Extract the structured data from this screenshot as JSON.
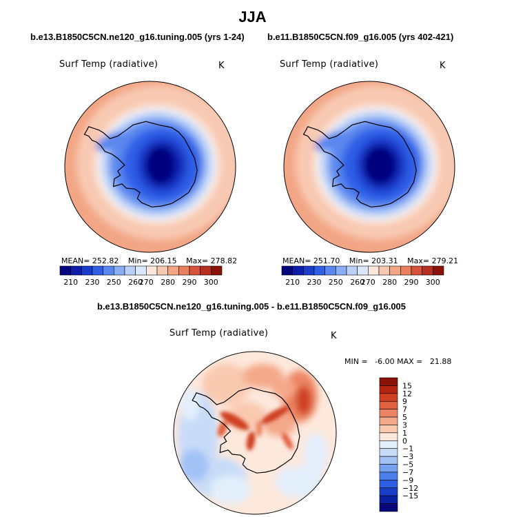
{
  "page": {
    "title": "JJA",
    "diff_title": "b.e13.B1850C5CN.ne120_g16.tuning.005 - b.e11.B1850C5CN.f09_g16.005"
  },
  "colors": {
    "abs_scale": [
      "#05057e",
      "#0e1da9",
      "#1a3ccc",
      "#2f5fe6",
      "#5a86ef",
      "#8aaef3",
      "#bad0f7",
      "#dbe7fa",
      "#fde7dc",
      "#f8c9b2",
      "#f2a686",
      "#e8805d",
      "#d6523a",
      "#b72f20",
      "#8a1208"
    ],
    "diff_scale": [
      "#07077a",
      "#0a20a0",
      "#1a3ec6",
      "#2e5fe0",
      "#4d7fea",
      "#76a0f0",
      "#a2c2f5",
      "#c8dcf8",
      "#e3eefb",
      "#fde8dc",
      "#f9c9b0",
      "#f4a98a",
      "#ec8664",
      "#e06140",
      "#cf3f22",
      "#b6250f",
      "#8a1207"
    ],
    "land_outline": "#000000"
  },
  "chart_data": [
    {
      "type": "heatmap",
      "projection": "south-polar-stereographic",
      "title": "b.e13.B1850C5CN.ne120_g16.tuning.005 (yrs 1-24)",
      "variable": "Surf Temp (radiative)",
      "units": "K",
      "stats": {
        "mean": "252.82",
        "min": "206.15",
        "max": "278.82"
      },
      "stats_labels": {
        "mean": "MEAN=",
        "min": "Min=",
        "max": "Max="
      },
      "colorbar_ticks": [
        "210",
        "230",
        "250",
        "260",
        "270",
        "280",
        "290",
        "300"
      ],
      "colorbar_levels": [
        205,
        210,
        220,
        230,
        240,
        250,
        255,
        260,
        265,
        270,
        275,
        280,
        285,
        290,
        295,
        300
      ]
    },
    {
      "type": "heatmap",
      "projection": "south-polar-stereographic",
      "title": "b.e11.B1850C5CN.f09_g16.005 (yrs 402-421)",
      "variable": "Surf Temp (radiative)",
      "units": "K",
      "stats": {
        "mean": "251.70",
        "min": "203.31",
        "max": "279.21"
      },
      "stats_labels": {
        "mean": "MEAN=",
        "min": "Min=",
        "max": "Max="
      },
      "colorbar_ticks": [
        "210",
        "230",
        "250",
        "260",
        "270",
        "280",
        "290",
        "300"
      ],
      "colorbar_levels": [
        205,
        210,
        220,
        230,
        240,
        250,
        255,
        260,
        265,
        270,
        275,
        280,
        285,
        290,
        295,
        300
      ]
    },
    {
      "type": "heatmap",
      "projection": "south-polar-stereographic",
      "title": "b.e13.B1850C5CN.ne120_g16.tuning.005 - b.e11.B1850C5CN.f09_g16.005",
      "variable": "Surf Temp (radiative)",
      "units": "K",
      "stats": {
        "min": "-6.00",
        "max": "21.88"
      },
      "stats_text": "MIN =   -6.00 MAX =   21.88",
      "colorbar_ticks": [
        "15",
        "12",
        "9",
        "7",
        "5",
        "3",
        "1",
        "0",
        "−1",
        "−3",
        "−5",
        "−7",
        "−9",
        "−12",
        "−15"
      ]
    }
  ]
}
